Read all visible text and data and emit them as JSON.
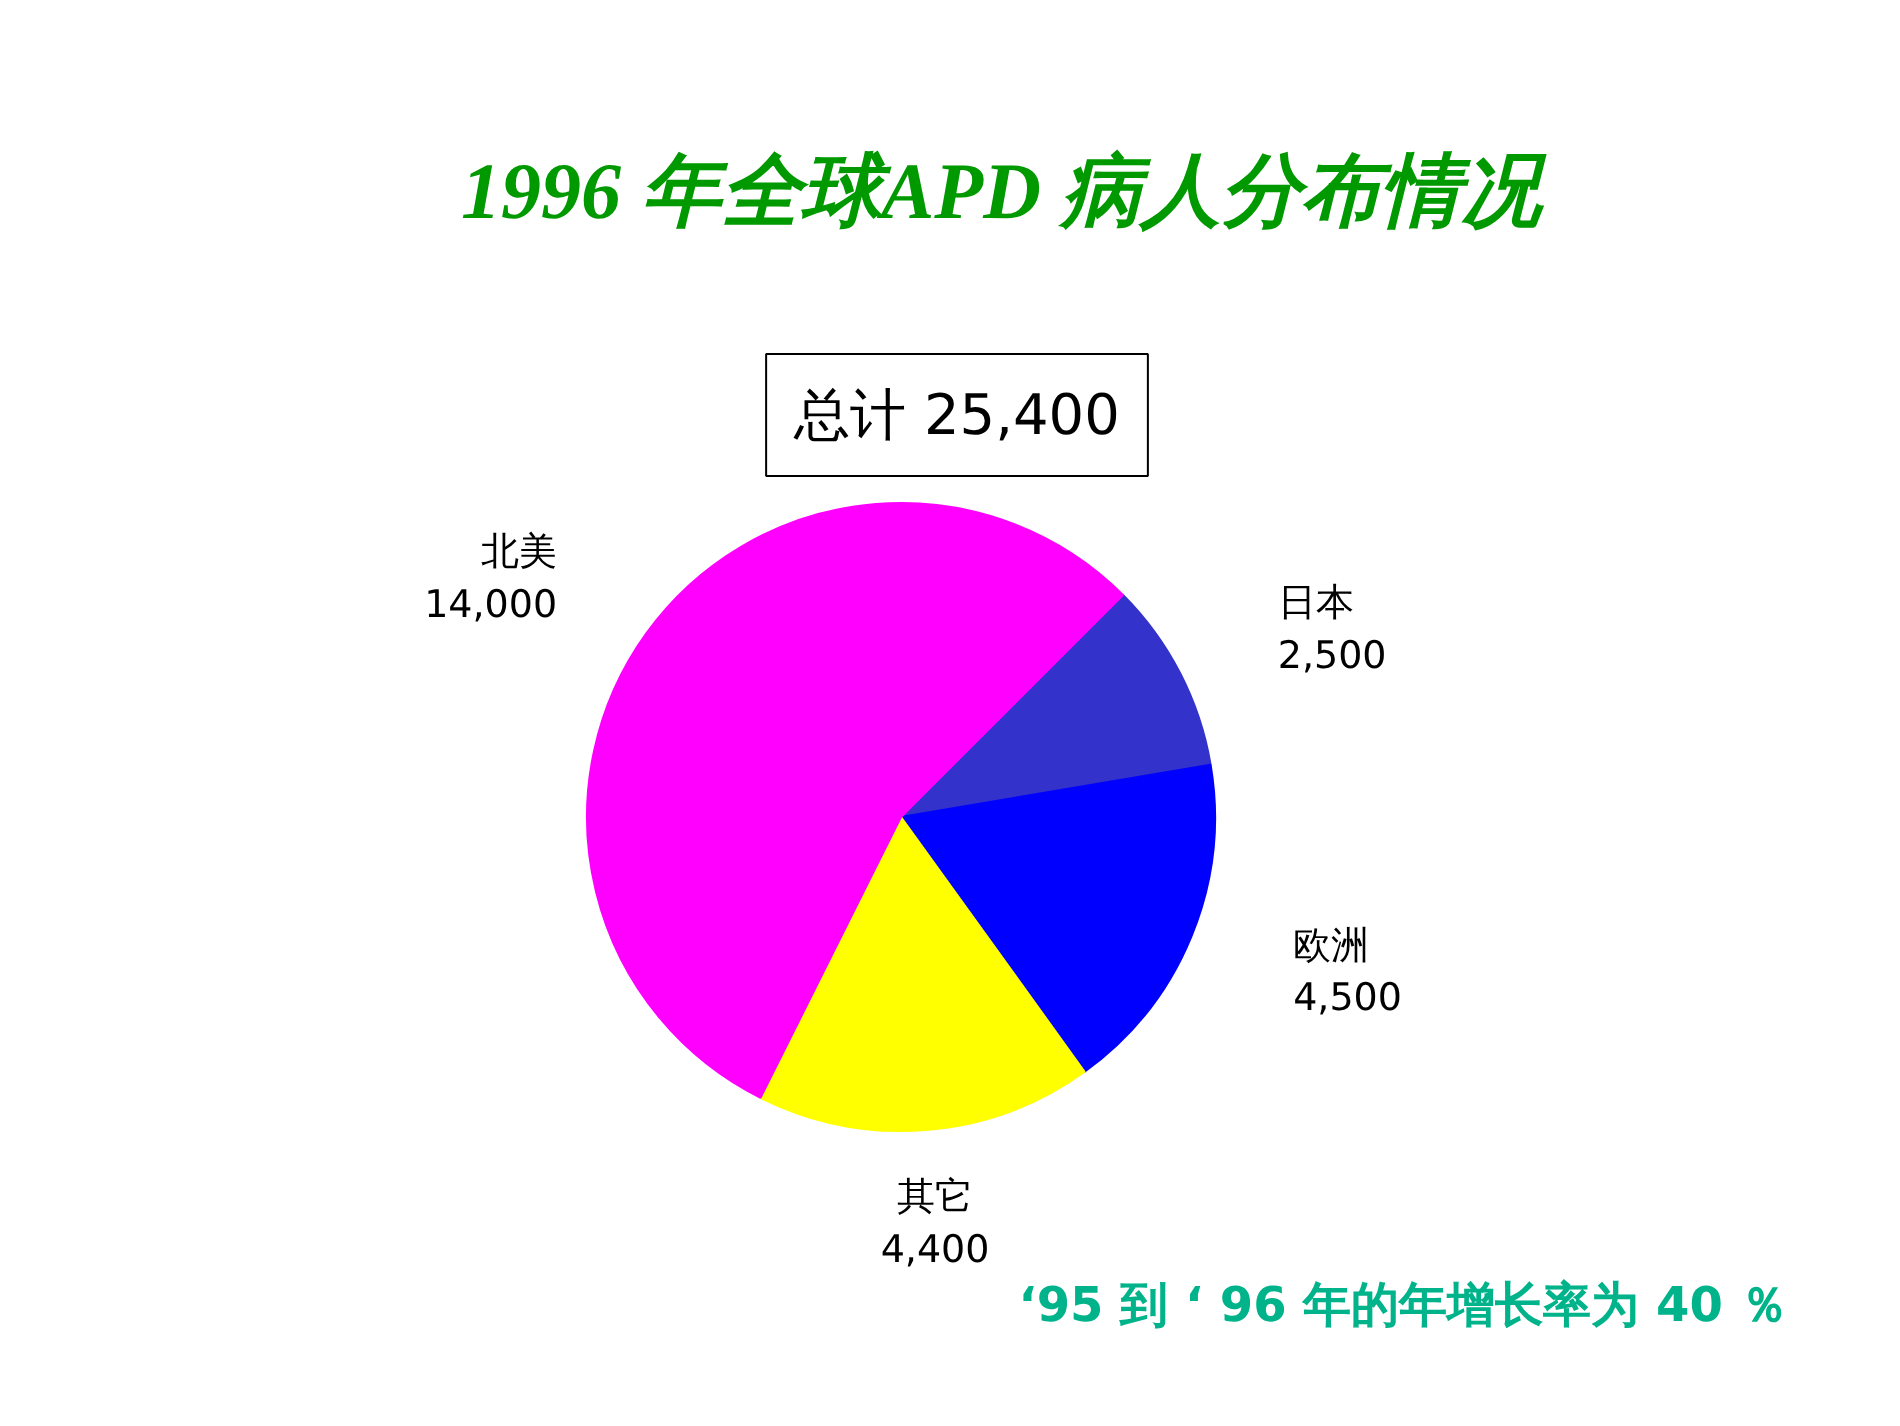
{
  "chart_data": {
    "type": "pie",
    "title": "1996 年全球APD  病人分布情况",
    "categories": [
      "日本",
      "欧洲",
      "其它",
      "北美"
    ],
    "values": [
      2500,
      4500,
      4400,
      14000
    ],
    "colors": [
      "#3333cc",
      "#0000ff",
      "#ffff00",
      "#ff00ff"
    ],
    "value_labels": [
      "2,500",
      "4,500",
      "4,400",
      "14,000"
    ],
    "annotations": [
      "总计 25,400",
      "‘95  到  ‘ 96 年的年增长率为 40 ％"
    ]
  }
}
